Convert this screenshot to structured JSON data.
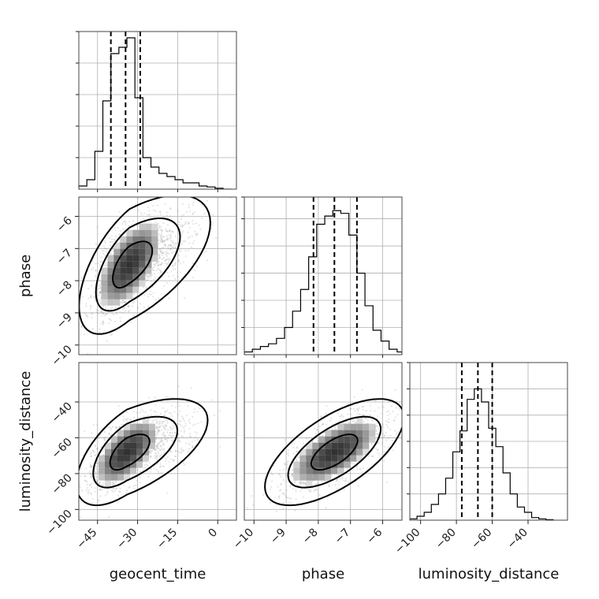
{
  "chart_data": {
    "type": "corner",
    "parameters": [
      "geocent_time",
      "phase",
      "luminosity_distance"
    ],
    "axes": {
      "geocent_time": {
        "range": [
          -52,
          7
        ],
        "ticks": [
          -45,
          -30,
          -15,
          0
        ],
        "tick_labels": [
          "−45",
          "−30",
          "−15",
          "0"
        ]
      },
      "phase": {
        "range": [
          -10.3,
          -5.4
        ],
        "ticks": [
          -10,
          -9,
          -8,
          -7,
          -6
        ],
        "tick_labels": [
          "−10",
          "−9",
          "−8",
          "−7",
          "−6"
        ]
      },
      "luminosity_distance": {
        "range": [
          -106,
          -18
        ],
        "ticks": [
          -100,
          -80,
          -60,
          -40
        ],
        "tick_labels": [
          "−100",
          "−80",
          "−60",
          "−40"
        ]
      }
    },
    "histograms": [
      {
        "parameter": "geocent_time",
        "bin_edges": [
          -52,
          -49,
          -46,
          -43,
          -40,
          -37,
          -34,
          -31,
          -28,
          -25,
          -22,
          -19,
          -16,
          -13,
          -10,
          -7,
          -4,
          -1,
          2,
          5
        ],
        "counts": [
          1,
          3,
          12,
          28,
          43,
          45,
          48,
          29,
          10,
          7,
          5,
          4,
          3,
          2,
          2,
          1,
          0.7,
          0.3,
          0
        ],
        "quantiles": [
          -40,
          -34.5,
          -29
        ],
        "grid_y": [
          10,
          20,
          30,
          40,
          50
        ],
        "ymax": 50
      },
      {
        "parameter": "phase",
        "bin_edges": [
          -10.3,
          -10.05,
          -9.8,
          -9.55,
          -9.3,
          -9.05,
          -8.8,
          -8.55,
          -8.3,
          -8.05,
          -7.8,
          -7.55,
          -7.3,
          -7.05,
          -6.8,
          -6.55,
          -6.3,
          -6.05,
          -5.8,
          -5.55,
          -5.4
        ],
        "counts": [
          1,
          2,
          3,
          4,
          6,
          10,
          16,
          24,
          36,
          48,
          51,
          53,
          52,
          44,
          30,
          18,
          9,
          5,
          2,
          1
        ],
        "quantiles": [
          -8.15,
          -7.5,
          -6.8
        ],
        "grid_y": [
          10,
          20,
          30,
          40,
          50
        ],
        "ymax": 58
      },
      {
        "parameter": "luminosity_distance",
        "bin_edges": [
          -106,
          -102,
          -98,
          -94,
          -90,
          -86,
          -82,
          -78,
          -74,
          -70,
          -66,
          -62,
          -58,
          -54,
          -50,
          -46,
          -42,
          -38,
          -34,
          -30,
          -26
        ],
        "counts": [
          0.5,
          1.5,
          3,
          6,
          10,
          16,
          26,
          34,
          46,
          50,
          45,
          35,
          28,
          18,
          10,
          5,
          3,
          1,
          0.5,
          0.2
        ],
        "quantiles": [
          -77,
          -68,
          -60
        ],
        "grid_y": [
          10,
          20,
          30,
          40,
          50
        ],
        "ymax": 60
      }
    ],
    "scatter_2d": [
      {
        "x": "geocent_time",
        "y": "phase",
        "mean": [
          -33,
          -7.5
        ],
        "sd": [
          7,
          0.8
        ],
        "rho": 0.6,
        "contours": [
          {
            "level": 1,
            "skew": 0.35
          },
          {
            "level": 2,
            "skew": 0.5
          },
          {
            "level": 3,
            "skew": 0.6
          }
        ]
      },
      {
        "x": "geocent_time",
        "y": "luminosity_distance",
        "mean": [
          -34,
          -68
        ],
        "sd": [
          7,
          11
        ],
        "rho": 0.6,
        "contours": [
          {
            "level": 1,
            "skew": 0.35
          },
          {
            "level": 2,
            "skew": 0.5
          },
          {
            "level": 3,
            "skew": 0.6
          }
        ]
      },
      {
        "x": "phase",
        "y": "luminosity_distance",
        "mean": [
          -7.5,
          -68
        ],
        "sd": [
          0.8,
          11
        ],
        "rho": 0.65,
        "contours": [
          {
            "level": 1,
            "skew": 0
          },
          {
            "level": 2,
            "skew": 0
          },
          {
            "level": 3,
            "skew": 0
          }
        ]
      }
    ],
    "grid": true
  }
}
